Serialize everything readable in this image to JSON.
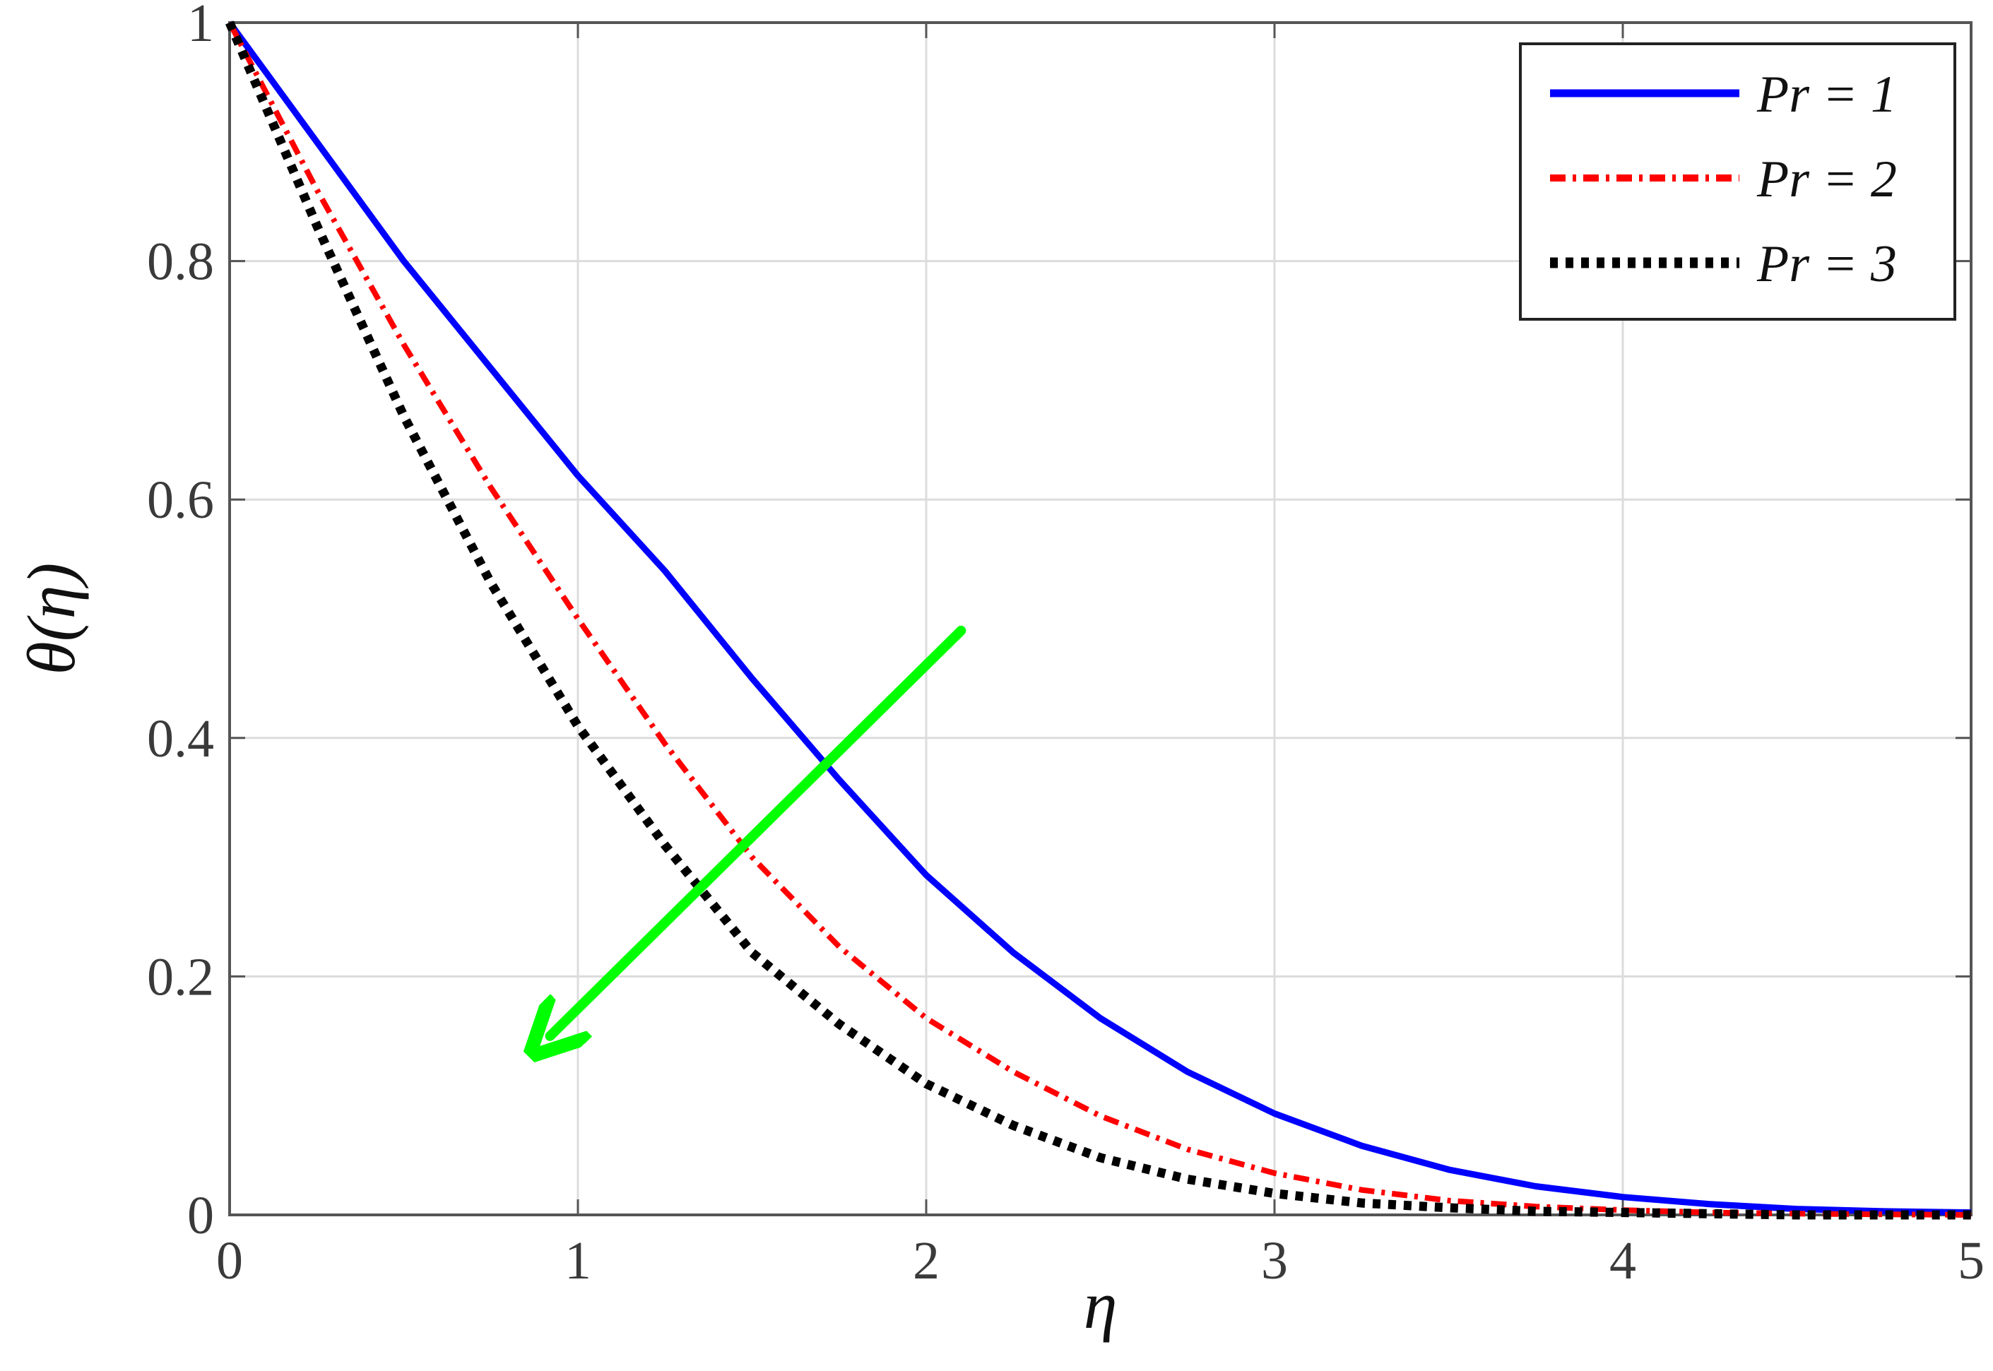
{
  "chart_data": {
    "type": "line",
    "title": "",
    "xlabel": "η",
    "ylabel": "θ(η)",
    "xlim": [
      0,
      5
    ],
    "ylim": [
      0,
      1
    ],
    "xticks": [
      0,
      1,
      2,
      3,
      4,
      5
    ],
    "yticks": [
      0,
      0.2,
      0.4,
      0.6,
      0.8,
      1
    ],
    "xtick_labels": [
      "0",
      "1",
      "2",
      "3",
      "4",
      "5"
    ],
    "ytick_labels": [
      "0",
      "0.2",
      "0.4",
      "0.6",
      "0.8",
      "1"
    ],
    "grid": true,
    "legend_position": "top-right",
    "x": [
      0,
      0.25,
      0.5,
      0.75,
      1,
      1.25,
      1.5,
      1.75,
      2,
      2.25,
      2.5,
      2.75,
      3,
      3.25,
      3.5,
      3.75,
      4,
      4.25,
      4.5,
      4.75,
      5
    ],
    "series": [
      {
        "name": "Pr = 1",
        "color": "#0000ff",
        "style": "solid",
        "values": [
          1,
          0.9,
          0.8,
          0.71,
          0.62,
          0.54,
          0.45,
          0.365,
          0.285,
          0.22,
          0.165,
          0.12,
          0.085,
          0.058,
          0.038,
          0.024,
          0.015,
          0.009,
          0.005,
          0.003,
          0.002
        ]
      },
      {
        "name": "Pr = 2",
        "color": "#ff0000",
        "style": "dashdot",
        "values": [
          1,
          0.86,
          0.73,
          0.61,
          0.5,
          0.395,
          0.3,
          0.225,
          0.165,
          0.12,
          0.083,
          0.055,
          0.035,
          0.021,
          0.012,
          0.007,
          0.004,
          0.002,
          0.001,
          0.0005,
          0
        ]
      },
      {
        "name": "Pr = 3",
        "color": "#000000",
        "style": "dotted",
        "values": [
          1,
          0.83,
          0.67,
          0.53,
          0.41,
          0.31,
          0.22,
          0.16,
          0.11,
          0.075,
          0.048,
          0.03,
          0.018,
          0.01,
          0.006,
          0.003,
          0.002,
          0.001,
          0,
          0,
          0
        ]
      }
    ],
    "annotations": [
      {
        "type": "arrow",
        "color": "#00ff00",
        "from": [
          2.1,
          0.49
        ],
        "to": [
          0.92,
          0.15
        ]
      }
    ]
  }
}
